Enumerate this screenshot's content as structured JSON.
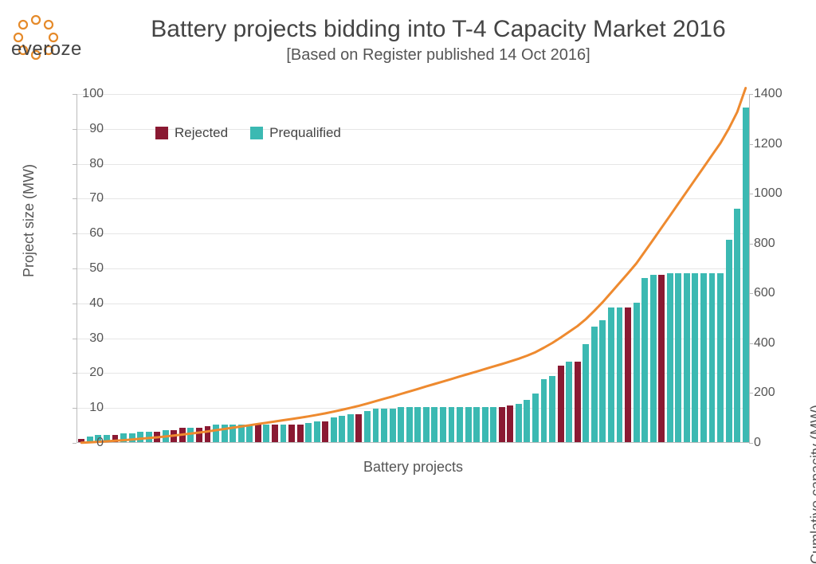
{
  "logo_text": "everoze",
  "logo_dot_color": "#e58a2a",
  "title": "Battery projects bidding into T-4 Capacity Market 2016",
  "subtitle": "[Based on Register published 14 Oct 2016]",
  "title_fontsize": 30,
  "subtitle_fontsize": 20,
  "axis_label_fontsize": 18,
  "tick_fontsize": 16,
  "x_label": "Battery projects",
  "y_left_label": "Project size (MW)",
  "y_right_label": "Cumlative capacity (MW)",
  "colors": {
    "rejected": "#8a1932",
    "prequalified": "#3bb9b2",
    "line": "#ee8a2f",
    "grid": "#e6e6e6",
    "axis": "#bbbbbb",
    "text": "#555555",
    "bg": "#ffffff"
  },
  "legend": [
    {
      "label": "Rejected",
      "color": "#8a1932"
    },
    {
      "label": "Prequalified",
      "color": "#3bb9b2"
    }
  ],
  "chart": {
    "type": "bar+line",
    "y_left": {
      "min": 0,
      "max": 100,
      "step": 10
    },
    "y_right": {
      "min": 0,
      "max": 1400,
      "step": 200
    },
    "bar_gap_ratio": 0.25,
    "line_width": 3,
    "bars": [
      {
        "v": 1,
        "s": "r"
      },
      {
        "v": 1.5,
        "s": "p"
      },
      {
        "v": 2,
        "s": "p"
      },
      {
        "v": 2,
        "s": "p"
      },
      {
        "v": 2,
        "s": "r"
      },
      {
        "v": 2.5,
        "s": "p"
      },
      {
        "v": 2.5,
        "s": "p"
      },
      {
        "v": 3,
        "s": "p"
      },
      {
        "v": 3,
        "s": "p"
      },
      {
        "v": 3,
        "s": "r"
      },
      {
        "v": 3.5,
        "s": "p"
      },
      {
        "v": 3.5,
        "s": "r"
      },
      {
        "v": 4,
        "s": "r"
      },
      {
        "v": 4,
        "s": "p"
      },
      {
        "v": 4,
        "s": "r"
      },
      {
        "v": 4.5,
        "s": "r"
      },
      {
        "v": 5,
        "s": "p"
      },
      {
        "v": 5,
        "s": "p"
      },
      {
        "v": 5,
        "s": "p"
      },
      {
        "v": 5,
        "s": "p"
      },
      {
        "v": 5,
        "s": "p"
      },
      {
        "v": 5,
        "s": "r"
      },
      {
        "v": 5,
        "s": "p"
      },
      {
        "v": 5,
        "s": "r"
      },
      {
        "v": 5,
        "s": "p"
      },
      {
        "v": 5,
        "s": "r"
      },
      {
        "v": 5,
        "s": "r"
      },
      {
        "v": 5.5,
        "s": "p"
      },
      {
        "v": 6,
        "s": "p"
      },
      {
        "v": 6,
        "s": "r"
      },
      {
        "v": 7,
        "s": "p"
      },
      {
        "v": 7.5,
        "s": "p"
      },
      {
        "v": 8,
        "s": "p"
      },
      {
        "v": 8,
        "s": "r"
      },
      {
        "v": 9,
        "s": "p"
      },
      {
        "v": 9.5,
        "s": "p"
      },
      {
        "v": 9.5,
        "s": "p"
      },
      {
        "v": 9.5,
        "s": "p"
      },
      {
        "v": 10,
        "s": "p"
      },
      {
        "v": 10,
        "s": "p"
      },
      {
        "v": 10,
        "s": "p"
      },
      {
        "v": 10,
        "s": "p"
      },
      {
        "v": 10,
        "s": "p"
      },
      {
        "v": 10,
        "s": "p"
      },
      {
        "v": 10,
        "s": "p"
      },
      {
        "v": 10,
        "s": "p"
      },
      {
        "v": 10,
        "s": "p"
      },
      {
        "v": 10,
        "s": "p"
      },
      {
        "v": 10,
        "s": "p"
      },
      {
        "v": 10,
        "s": "p"
      },
      {
        "v": 10,
        "s": "r"
      },
      {
        "v": 10.5,
        "s": "r"
      },
      {
        "v": 11,
        "s": "p"
      },
      {
        "v": 12,
        "s": "p"
      },
      {
        "v": 14,
        "s": "p"
      },
      {
        "v": 18,
        "s": "p"
      },
      {
        "v": 19,
        "s": "p"
      },
      {
        "v": 22,
        "s": "r"
      },
      {
        "v": 23,
        "s": "p"
      },
      {
        "v": 23,
        "s": "r"
      },
      {
        "v": 28,
        "s": "p"
      },
      {
        "v": 33,
        "s": "p"
      },
      {
        "v": 35,
        "s": "p"
      },
      {
        "v": 38.5,
        "s": "p"
      },
      {
        "v": 38.5,
        "s": "p"
      },
      {
        "v": 38.5,
        "s": "r"
      },
      {
        "v": 40,
        "s": "p"
      },
      {
        "v": 47,
        "s": "p"
      },
      {
        "v": 48,
        "s": "p"
      },
      {
        "v": 48,
        "s": "r"
      },
      {
        "v": 48.5,
        "s": "p"
      },
      {
        "v": 48.5,
        "s": "p"
      },
      {
        "v": 48.5,
        "s": "p"
      },
      {
        "v": 48.5,
        "s": "p"
      },
      {
        "v": 48.5,
        "s": "p"
      },
      {
        "v": 48.5,
        "s": "p"
      },
      {
        "v": 48.5,
        "s": "p"
      },
      {
        "v": 58,
        "s": "p"
      },
      {
        "v": 67,
        "s": "p"
      },
      {
        "v": 96,
        "s": "p"
      }
    ]
  }
}
